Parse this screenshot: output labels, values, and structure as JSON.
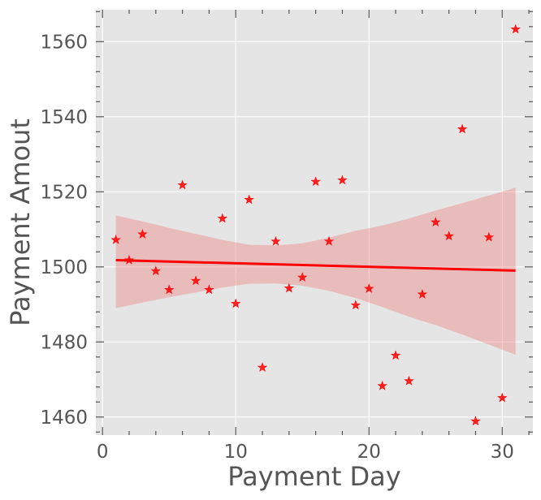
{
  "chart_data": {
    "type": "scatter",
    "xlabel": "Payment Day",
    "ylabel": "Payment Amout",
    "xlim": [
      -0.5,
      32.3
    ],
    "ylim": [
      1455.2,
      1568.5
    ],
    "x_ticks": [
      0,
      10,
      20,
      30
    ],
    "y_ticks": [
      1460,
      1480,
      1500,
      1520,
      1540,
      1560
    ],
    "grid": true,
    "marker": "star",
    "colors": {
      "background": "#e5e5e5",
      "points": "#ff0000",
      "regression_line": "#ff0000",
      "confidence_band": "#f08080",
      "grid": "#ffffff",
      "text": "#555555"
    },
    "series": [
      {
        "x": [
          1,
          2,
          3,
          4,
          5,
          6,
          7,
          8,
          9,
          10,
          11,
          12,
          13,
          14,
          15,
          16,
          17,
          18,
          19,
          20,
          21,
          22,
          23,
          24,
          25,
          26,
          27,
          28,
          29,
          30,
          31
        ],
        "y": [
          1507.2,
          1501.8,
          1508.7,
          1498.9,
          1493.9,
          1521.8,
          1496.3,
          1493.9,
          1512.9,
          1490.2,
          1517.9,
          1473.2,
          1506.8,
          1494.3,
          1497.2,
          1522.7,
          1506.8,
          1523.1,
          1489.8,
          1494.2,
          1468.3,
          1476.4,
          1469.6,
          1492.7,
          1511.9,
          1508.2,
          1536.7,
          1458.9,
          1507.9,
          1465.1,
          1563.3
        ]
      }
    ],
    "regression": {
      "x": [
        1,
        31
      ],
      "y": [
        1501.8,
        1499.0
      ]
    },
    "confidence_band": {
      "x": [
        1,
        3,
        5,
        7,
        9,
        11,
        13,
        15,
        17,
        19,
        21,
        23,
        25,
        27,
        29,
        31
      ],
      "lower": [
        1489.0,
        1490.5,
        1491.9,
        1493.2,
        1494.5,
        1495.5,
        1495.6,
        1495.0,
        1493.6,
        1491.7,
        1489.3,
        1486.7,
        1484.5,
        1482.0,
        1479.3,
        1476.6
      ],
      "upper": [
        1513.7,
        1512.1,
        1510.4,
        1508.8,
        1507.2,
        1505.9,
        1505.7,
        1506.3,
        1507.8,
        1509.6,
        1511.0,
        1512.9,
        1515.0,
        1517.0,
        1519.0,
        1521.1
      ]
    }
  }
}
